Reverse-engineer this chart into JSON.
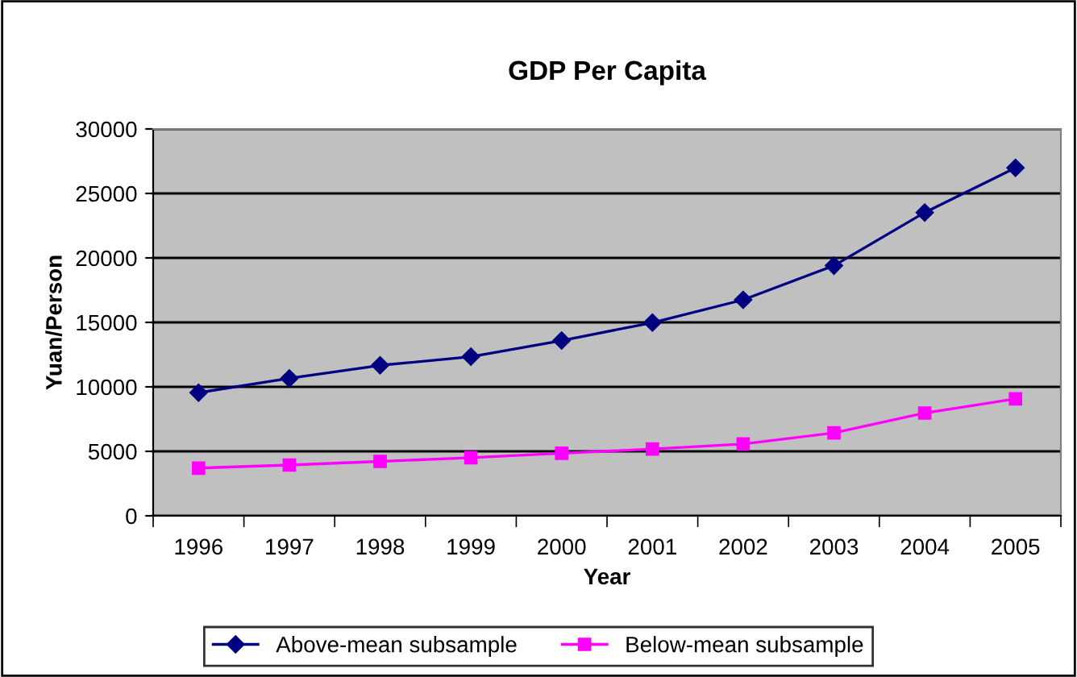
{
  "chart_data": {
    "type": "line",
    "title": "GDP Per Capita",
    "xlabel": "Year",
    "ylabel": "Yuan/Person",
    "categories": [
      "1996",
      "1997",
      "1998",
      "1999",
      "2000",
      "2001",
      "2002",
      "2003",
      "2004",
      "2005"
    ],
    "series": [
      {
        "name": "Above-mean subsample",
        "color": "#000080",
        "marker": "diamond",
        "values": [
          9550,
          10660,
          11670,
          12340,
          13590,
          14980,
          16750,
          19400,
          23520,
          26980
        ]
      },
      {
        "name": "Below-mean subsample",
        "color": "#ff00ff",
        "marker": "square",
        "values": [
          3700,
          3940,
          4220,
          4510,
          4850,
          5180,
          5570,
          6430,
          7970,
          9070
        ]
      }
    ],
    "ylim": [
      0,
      30000
    ],
    "yticks": [
      0,
      5000,
      10000,
      15000,
      20000,
      25000,
      30000
    ],
    "grid": "y",
    "legend": "bottom",
    "line_style": "solid"
  }
}
